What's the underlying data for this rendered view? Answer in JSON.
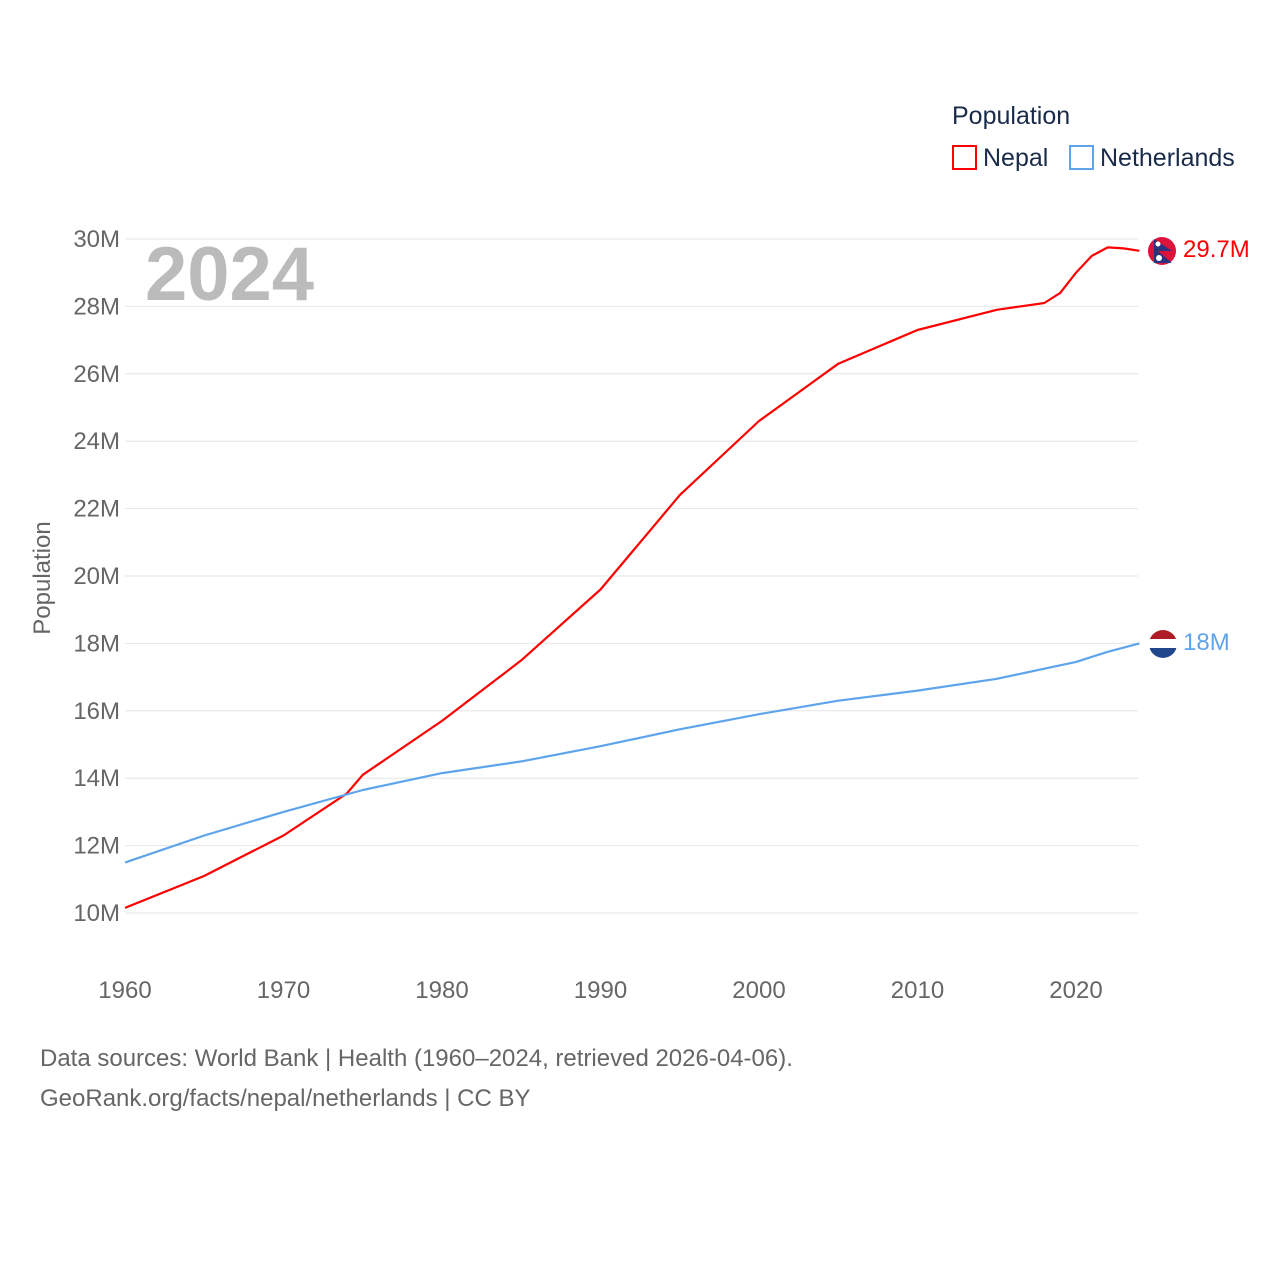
{
  "chart_data": {
    "type": "line",
    "title": "",
    "year_label": "2024",
    "xlabel": "",
    "ylabel": "Population",
    "xlim": [
      1960,
      2024
    ],
    "ylim": [
      10000000,
      30000000
    ],
    "x_ticks": [
      1960,
      1970,
      1980,
      1990,
      2000,
      2010,
      2020
    ],
    "x_tick_labels": [
      "1960",
      "1970",
      "1980",
      "1990",
      "2000",
      "2010",
      "2020"
    ],
    "y_ticks": [
      10000000,
      12000000,
      14000000,
      16000000,
      18000000,
      20000000,
      22000000,
      24000000,
      26000000,
      28000000,
      30000000
    ],
    "y_tick_labels": [
      "10M",
      "12M",
      "14M",
      "16M",
      "18M",
      "20M",
      "22M",
      "24M",
      "26M",
      "28M",
      "30M"
    ],
    "grid": true,
    "legend": {
      "title": "Population",
      "position": "top-right"
    },
    "series": [
      {
        "name": "Nepal",
        "color": "#ff0000",
        "end_label": "29.7M",
        "x": [
          1960,
          1965,
          1970,
          1974,
          1975,
          1980,
          1985,
          1990,
          1995,
          2000,
          2005,
          2010,
          2015,
          2018,
          2019,
          2020,
          2021,
          2022,
          2023,
          2024
        ],
        "values": [
          10150000,
          11100000,
          12300000,
          13550000,
          14100000,
          15700000,
          17500000,
          19600000,
          22400000,
          24600000,
          26300000,
          27300000,
          27900000,
          28100000,
          28400000,
          29000000,
          29500000,
          29750000,
          29720000,
          29650000
        ]
      },
      {
        "name": "Netherlands",
        "color": "#5ea4ec",
        "end_label": "18M",
        "x": [
          1960,
          1965,
          1970,
          1975,
          1980,
          1985,
          1990,
          1995,
          2000,
          2005,
          2010,
          2015,
          2020,
          2022,
          2024
        ],
        "values": [
          11500000,
          12300000,
          13000000,
          13650000,
          14150000,
          14500000,
          14950000,
          15450000,
          15900000,
          16300000,
          16600000,
          16950000,
          17450000,
          17750000,
          18000000
        ]
      }
    ]
  },
  "footer": {
    "line1": "Data sources: World Bank | Health (1960–2024, retrieved 2026-04-06).",
    "line2": "GeoRank.org/facts/nepal/netherlands | CC BY"
  }
}
